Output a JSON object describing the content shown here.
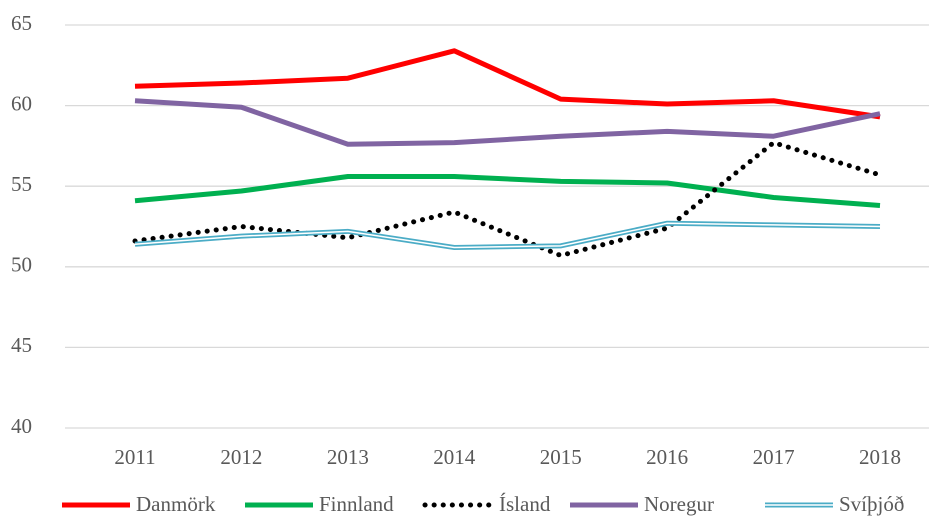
{
  "chart_data": {
    "type": "line",
    "categories": [
      "2011",
      "2012",
      "2013",
      "2014",
      "2015",
      "2016",
      "2017",
      "2018"
    ],
    "ylim": [
      40,
      65
    ],
    "yticks": [
      40,
      45,
      50,
      55,
      60,
      65
    ],
    "grid": true,
    "legend": "bottom",
    "series": [
      {
        "name": "Danmörk",
        "color": "#ff0000",
        "style": "solid",
        "values": [
          61.2,
          61.4,
          61.7,
          63.4,
          60.4,
          60.1,
          60.3,
          59.3
        ]
      },
      {
        "name": "Finnland",
        "color": "#00b050",
        "style": "solid",
        "values": [
          54.1,
          54.7,
          55.6,
          55.6,
          55.3,
          55.2,
          54.3,
          53.8
        ]
      },
      {
        "name": "Ísland",
        "color": "#000000",
        "style": "dotted",
        "values": [
          51.6,
          52.5,
          51.8,
          53.4,
          50.7,
          52.4,
          57.7,
          55.7
        ]
      },
      {
        "name": "Noregur",
        "color": "#8064a2",
        "style": "solid",
        "values": [
          60.3,
          59.9,
          57.6,
          57.7,
          58.1,
          58.4,
          58.1,
          59.5
        ]
      },
      {
        "name": "Svíþjóð",
        "color": "#4bacc6",
        "style": "double",
        "values": [
          51.4,
          51.9,
          52.2,
          51.2,
          51.3,
          52.7,
          52.6,
          52.5
        ]
      }
    ]
  }
}
